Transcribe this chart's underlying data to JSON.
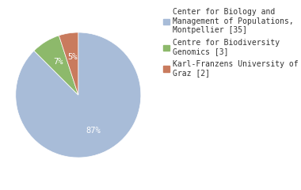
{
  "slices": [
    35,
    3,
    2
  ],
  "percentages": [
    "87%",
    "7%",
    "5%"
  ],
  "colors": [
    "#a8bcd8",
    "#8db96b",
    "#c97b5e"
  ],
  "labels": [
    "Center for Biology and\nManagement of Populations,\nMontpellier [35]",
    "Centre for Biodiversity\nGenomics [3]",
    "Karl-Franzens University of\nGraz [2]"
  ],
  "background_color": "#ffffff",
  "text_color": "#ffffff",
  "font_size": 7.5,
  "legend_font_size": 7.0
}
